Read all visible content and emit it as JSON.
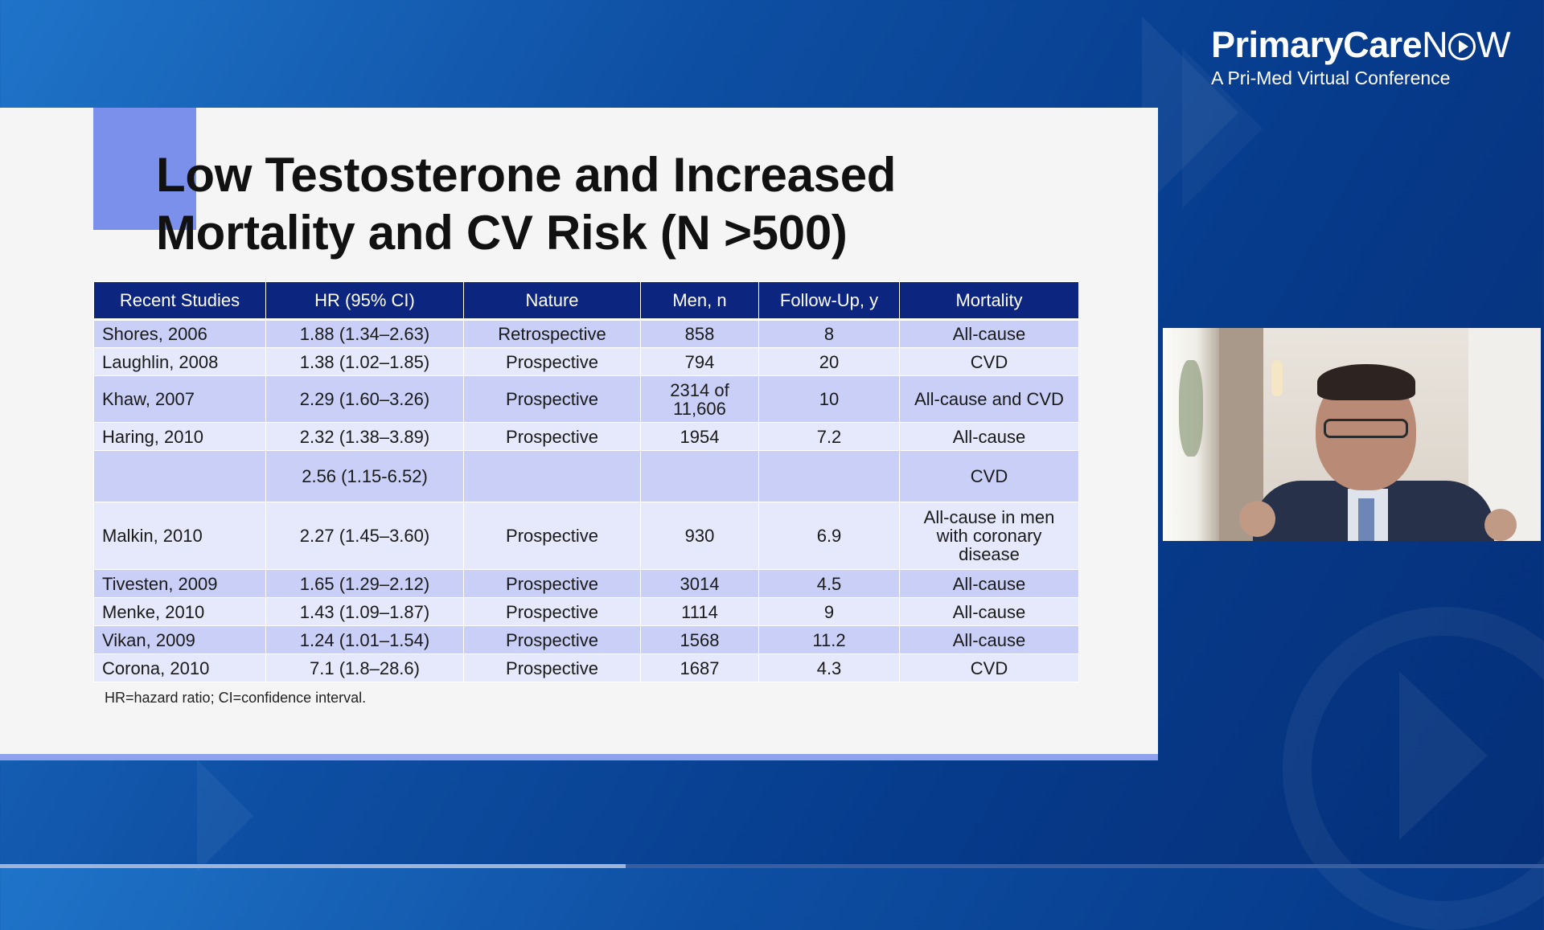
{
  "brand": {
    "name_bold": "PrimaryCare",
    "name_now_pre": "N",
    "name_now_post": "W",
    "subtitle": "A Pri-Med Virtual Conference"
  },
  "slide": {
    "title_line1": "Low Testosterone and Increased",
    "title_line2": "Mortality and CV Risk (N >500)",
    "footnote": "HR=hazard ratio; CI=confidence interval."
  },
  "table": {
    "headers": [
      "Recent Studies",
      "HR (95% CI)",
      "Nature",
      "Men, n",
      "Follow-Up, y",
      "Mortality"
    ],
    "rows": [
      [
        "Shores, 2006",
        "1.88 (1.34–2.63)",
        "Retrospective",
        "858",
        "8",
        "All-cause"
      ],
      [
        "Laughlin, 2008",
        "1.38 (1.02–1.85)",
        "Prospective",
        "794",
        "20",
        "CVD"
      ],
      [
        "Khaw, 2007",
        "2.29 (1.60–3.26)",
        "Prospective",
        "2314 of 11,606",
        "10",
        "All-cause and CVD"
      ],
      [
        "Haring, 2010",
        "2.32 (1.38–3.89)",
        "Prospective",
        "1954",
        "7.2",
        "All-cause"
      ],
      [
        "",
        "2.56 (1.15-6.52)",
        "",
        "",
        "",
        "CVD"
      ],
      [
        "Malkin, 2010",
        "2.27 (1.45–3.60)",
        "Prospective",
        "930",
        "6.9",
        "All-cause in men with coronary disease"
      ],
      [
        "Tivesten, 2009",
        "1.65 (1.29–2.12)",
        "Prospective",
        "3014",
        "4.5",
        "All-cause"
      ],
      [
        "Menke, 2010",
        "1.43 (1.09–1.87)",
        "Prospective",
        "1114",
        "9",
        "All-cause"
      ],
      [
        "Vikan, 2009",
        "1.24 (1.01–1.54)",
        "Prospective",
        "1568",
        "11.2",
        "All-cause"
      ],
      [
        "Corona, 2010",
        "7.1 (1.8–28.6)",
        "Prospective",
        "1687",
        "4.3",
        "CVD"
      ]
    ]
  },
  "colors": {
    "header_bg": "#0c2680",
    "row_odd": "#c9cff7",
    "row_even": "#e6e9fb",
    "accent": "#7a90ea"
  }
}
